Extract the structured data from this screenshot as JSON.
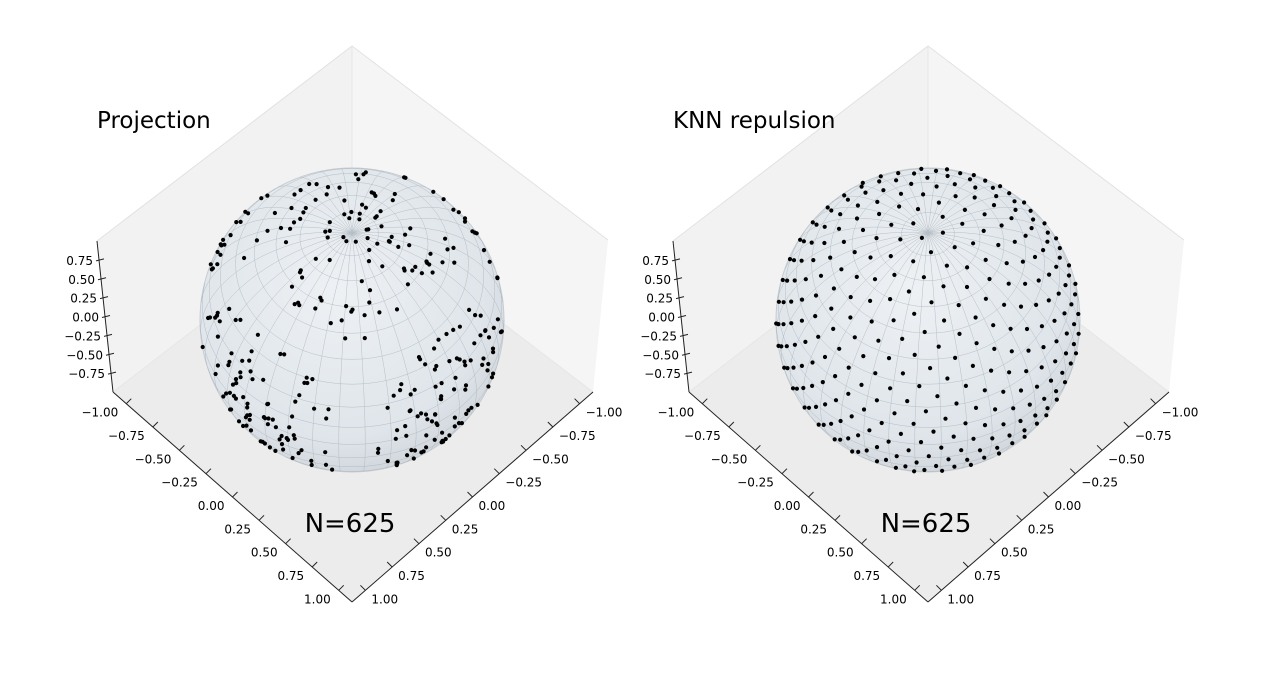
{
  "chart_data": [
    {
      "type": "scatter",
      "subtype": "3d-scatter-on-sphere",
      "title": "Projection",
      "annotation": "N=625",
      "n_points": 625,
      "distribution": "clustered",
      "sphere_radius": 1.0,
      "view": {
        "elevation_deg": 55,
        "azimuth_deg": 45
      },
      "xlim": [
        -1.0,
        1.0
      ],
      "ylim": [
        -1.0,
        1.0
      ],
      "zlim": [
        -1.0,
        1.0
      ],
      "x_ticks": [
        "−1.00",
        "−0.75",
        "−0.50",
        "−0.25",
        "0.00",
        "0.25",
        "0.50",
        "0.75",
        "1.00"
      ],
      "y_ticks": [
        "−1.00",
        "−0.75",
        "−0.50",
        "−0.25",
        "0.00",
        "0.25",
        "0.50",
        "0.75",
        "1.00"
      ],
      "z_ticks": [
        "−0.75",
        "−0.50",
        "−0.25",
        "0.00",
        "0.25",
        "0.50",
        "0.75"
      ],
      "grid": true,
      "point_color": "#000000",
      "sphere_color": "#dfe5ea"
    },
    {
      "type": "scatter",
      "subtype": "3d-scatter-on-sphere",
      "title": "KNN repulsion",
      "annotation": "N=625",
      "n_points": 625,
      "distribution": "uniform",
      "sphere_radius": 1.0,
      "view": {
        "elevation_deg": 55,
        "azimuth_deg": 45
      },
      "xlim": [
        -1.0,
        1.0
      ],
      "ylim": [
        -1.0,
        1.0
      ],
      "zlim": [
        -1.0,
        1.0
      ],
      "x_ticks": [
        "−1.00",
        "−0.75",
        "−0.50",
        "−0.25",
        "0.00",
        "0.25",
        "0.50",
        "0.75",
        "1.00"
      ],
      "y_ticks": [
        "−1.00",
        "−0.75",
        "−0.50",
        "−0.25",
        "0.00",
        "0.25",
        "0.50",
        "0.75",
        "1.00"
      ],
      "z_ticks": [
        "−0.75",
        "−0.50",
        "−0.25",
        "0.00",
        "0.25",
        "0.50",
        "0.75"
      ],
      "grid": true,
      "point_color": "#000000",
      "sphere_color": "#dfe5ea"
    }
  ]
}
